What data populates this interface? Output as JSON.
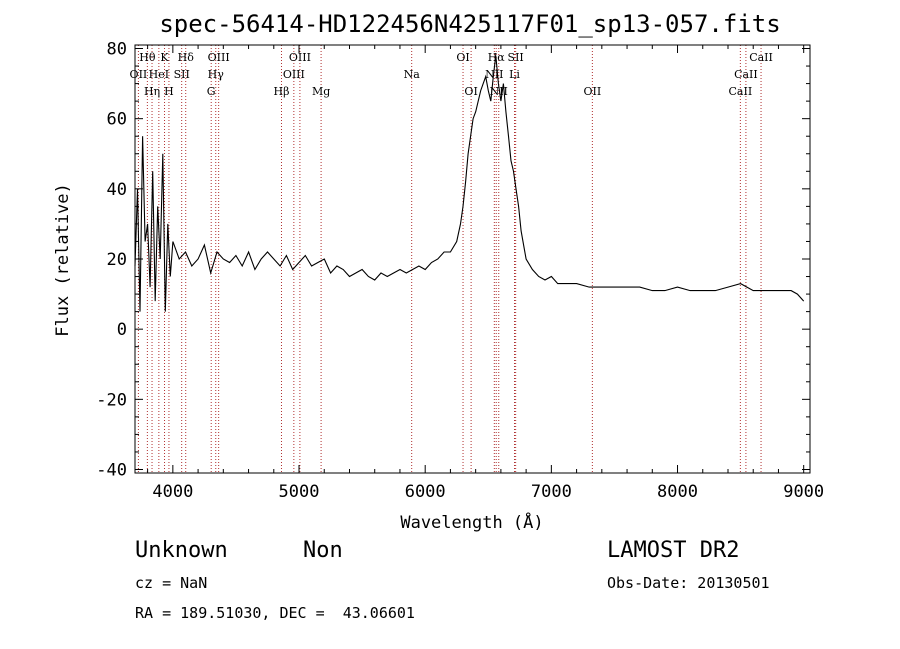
{
  "chart_data": {
    "type": "line",
    "title": "spec-56414-HD122456N425117F01_sp13-057.fits",
    "xlabel": "Wavelength (Å)",
    "ylabel": "Flux (relative)",
    "xlim": [
      3700,
      9050
    ],
    "ylim": [
      -41,
      81
    ],
    "xticks": [
      4000,
      5000,
      6000,
      7000,
      8000,
      9000
    ],
    "yticks": [
      -40,
      -20,
      0,
      20,
      40,
      60,
      80
    ],
    "grid": false,
    "line_color": "#000000",
    "marker_color": "#b03030",
    "series": [
      {
        "x": [
          3700,
          3720,
          3740,
          3760,
          3780,
          3800,
          3820,
          3840,
          3860,
          3880,
          3900,
          3920,
          3940,
          3960,
          3980,
          4000,
          4050,
          4100,
          4150,
          4200,
          4250,
          4300,
          4350,
          4400,
          4450,
          4500,
          4550,
          4600,
          4650,
          4700,
          4750,
          4800,
          4850,
          4900,
          4950,
          5000,
          5050,
          5100,
          5150,
          5200,
          5250,
          5300,
          5350,
          5400,
          5450,
          5500,
          5550,
          5600,
          5650,
          5700,
          5750,
          5800,
          5850,
          5900,
          5950,
          6000,
          6050,
          6100,
          6150,
          6200,
          6250,
          6280,
          6300,
          6320,
          6340,
          6360,
          6380,
          6400,
          6420,
          6440,
          6460,
          6480,
          6500,
          6520,
          6540,
          6560,
          6580,
          6600,
          6620,
          6640,
          6660,
          6680,
          6700,
          6720,
          6740,
          6760,
          6780,
          6800,
          6850,
          6900,
          6950,
          7000,
          7050,
          7100,
          7200,
          7300,
          7400,
          7500,
          7600,
          7700,
          7800,
          7900,
          8000,
          8100,
          8200,
          8300,
          8400,
          8500,
          8550,
          8600,
          8700,
          8800,
          8900,
          8950,
          9000
        ],
        "y": [
          18,
          40,
          5,
          55,
          25,
          30,
          12,
          45,
          8,
          35,
          20,
          50,
          5,
          30,
          15,
          25,
          20,
          22,
          18,
          20,
          24,
          16,
          22,
          20,
          19,
          21,
          18,
          22,
          17,
          20,
          22,
          20,
          18,
          21,
          17,
          19,
          21,
          18,
          19,
          20,
          16,
          18,
          17,
          15,
          16,
          17,
          15,
          14,
          16,
          15,
          16,
          17,
          16,
          17,
          18,
          17,
          19,
          20,
          22,
          22,
          25,
          30,
          35,
          42,
          50,
          55,
          60,
          62,
          65,
          68,
          70,
          72,
          68,
          65,
          72,
          78,
          70,
          65,
          70,
          62,
          55,
          48,
          45,
          40,
          35,
          28,
          24,
          20,
          17,
          15,
          14,
          15,
          13,
          13,
          13,
          12,
          12,
          12,
          12,
          12,
          11,
          11,
          12,
          11,
          11,
          11,
          12,
          13,
          12,
          11,
          11,
          11,
          11,
          10,
          8
        ]
      }
    ],
    "spectral_lines": [
      {
        "name": "Hθ",
        "x": 3798,
        "row": 0
      },
      {
        "name": "K",
        "x": 3934,
        "row": 0
      },
      {
        "name": "Hδ",
        "x": 4102,
        "row": 0
      },
      {
        "name": "OIII",
        "x": 4363,
        "row": 0
      },
      {
        "name": "OIII",
        "x": 5007,
        "row": 0
      },
      {
        "name": "OI",
        "x": 6300,
        "row": 0
      },
      {
        "name": "Hα",
        "x": 6563,
        "row": 0
      },
      {
        "name": "SII",
        "x": 6717,
        "row": 0
      },
      {
        "name": "CaII",
        "x": 8662,
        "row": 0
      },
      {
        "name": "OII",
        "x": 3727,
        "row": 1
      },
      {
        "name": "HeI",
        "x": 3889,
        "row": 1
      },
      {
        "name": "SII",
        "x": 4070,
        "row": 1
      },
      {
        "name": "Hγ",
        "x": 4340,
        "row": 1
      },
      {
        "name": "OIII",
        "x": 4959,
        "row": 1
      },
      {
        "name": "Na",
        "x": 5893,
        "row": 1
      },
      {
        "name": "NII",
        "x": 6548,
        "row": 1
      },
      {
        "name": "Li",
        "x": 6708,
        "row": 1
      },
      {
        "name": "CaII",
        "x": 8542,
        "row": 1
      },
      {
        "name": "Hη",
        "x": 3835,
        "row": 2
      },
      {
        "name": "H",
        "x": 3969,
        "row": 2
      },
      {
        "name": "G",
        "x": 4304,
        "row": 2
      },
      {
        "name": "Hβ",
        "x": 4861,
        "row": 2
      },
      {
        "name": "Mg",
        "x": 5175,
        "row": 2
      },
      {
        "name": "OI",
        "x": 6364,
        "row": 2
      },
      {
        "name": "NII",
        "x": 6583,
        "row": 2
      },
      {
        "name": "OII",
        "x": 7325,
        "row": 2
      },
      {
        "name": "CaII",
        "x": 8498,
        "row": 2
      }
    ]
  },
  "info": {
    "class_label": "Unknown",
    "subclass_label": "Non",
    "cz_label": "cz = NaN",
    "coords_label": "RA = 189.51030, DEC =  43.06601",
    "survey_label": "LAMOST DR2",
    "obsdate_label": "Obs-Date: 20130501"
  }
}
